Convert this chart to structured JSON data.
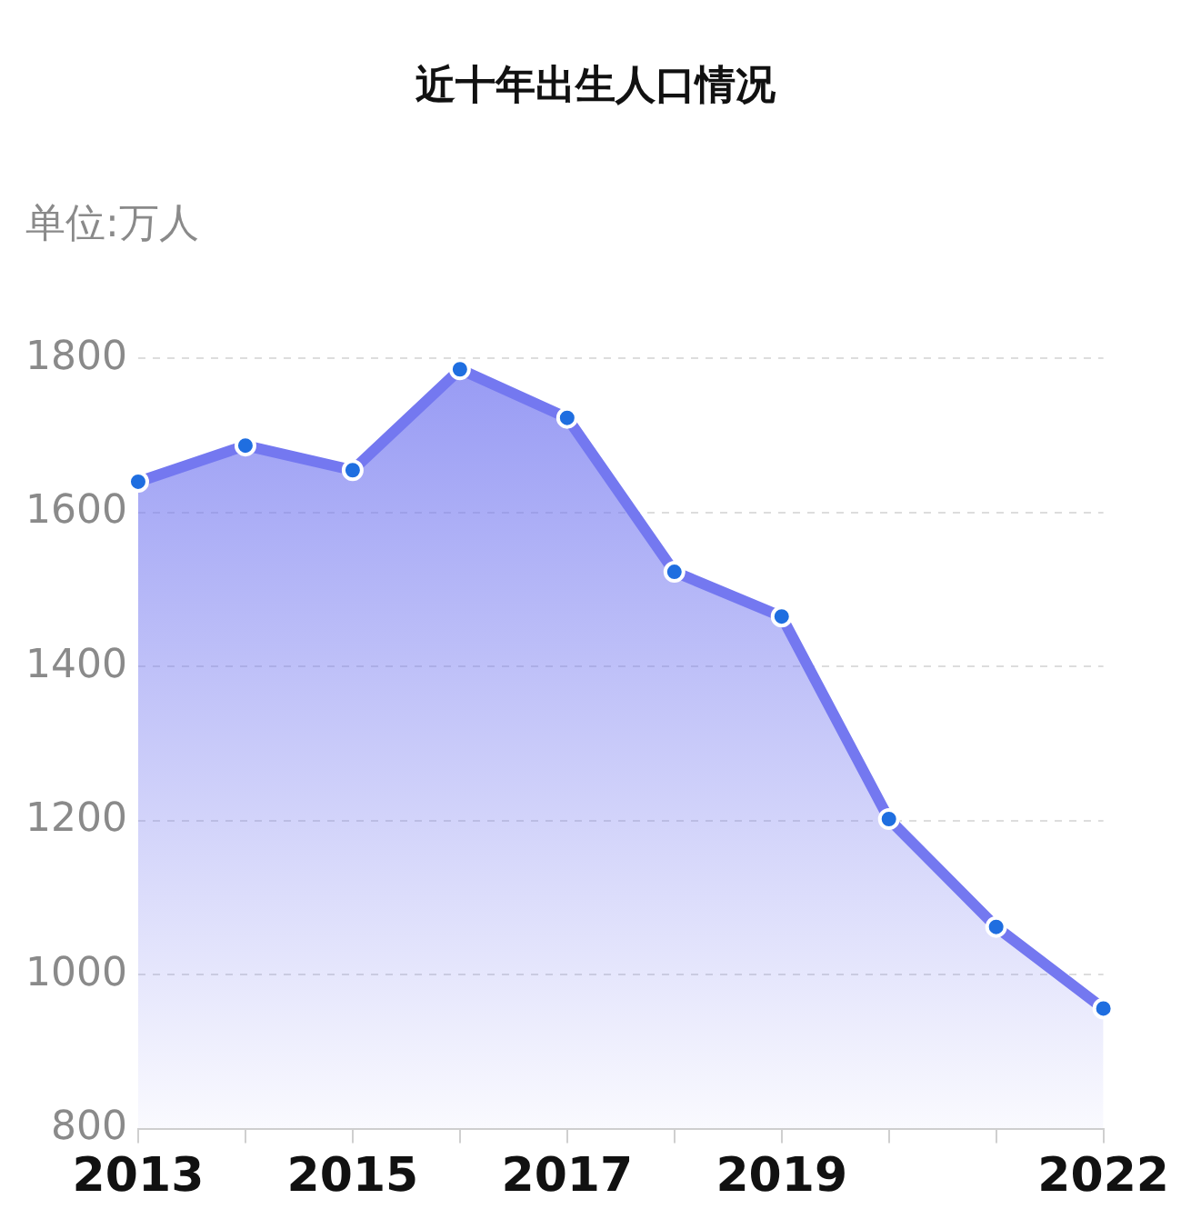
{
  "chart_data": {
    "type": "area",
    "title": "近十年出生人口情况",
    "ylabel": "单位:万人",
    "categories": [
      "2013",
      null,
      "2015",
      null,
      "2017",
      null,
      "2019",
      null,
      null,
      "2022"
    ],
    "series": [
      {
        "color": "#7478f0",
        "values": [
          1640,
          1687,
          1655,
          1786,
          1723,
          1523,
          1465,
          1202,
          1062,
          956
        ]
      }
    ],
    "ylim": [
      800,
      1800
    ],
    "yticks": [
      800,
      1000,
      1200,
      1400,
      1600,
      1800
    ],
    "grid": "y",
    "legend": false,
    "marker": "circle"
  }
}
